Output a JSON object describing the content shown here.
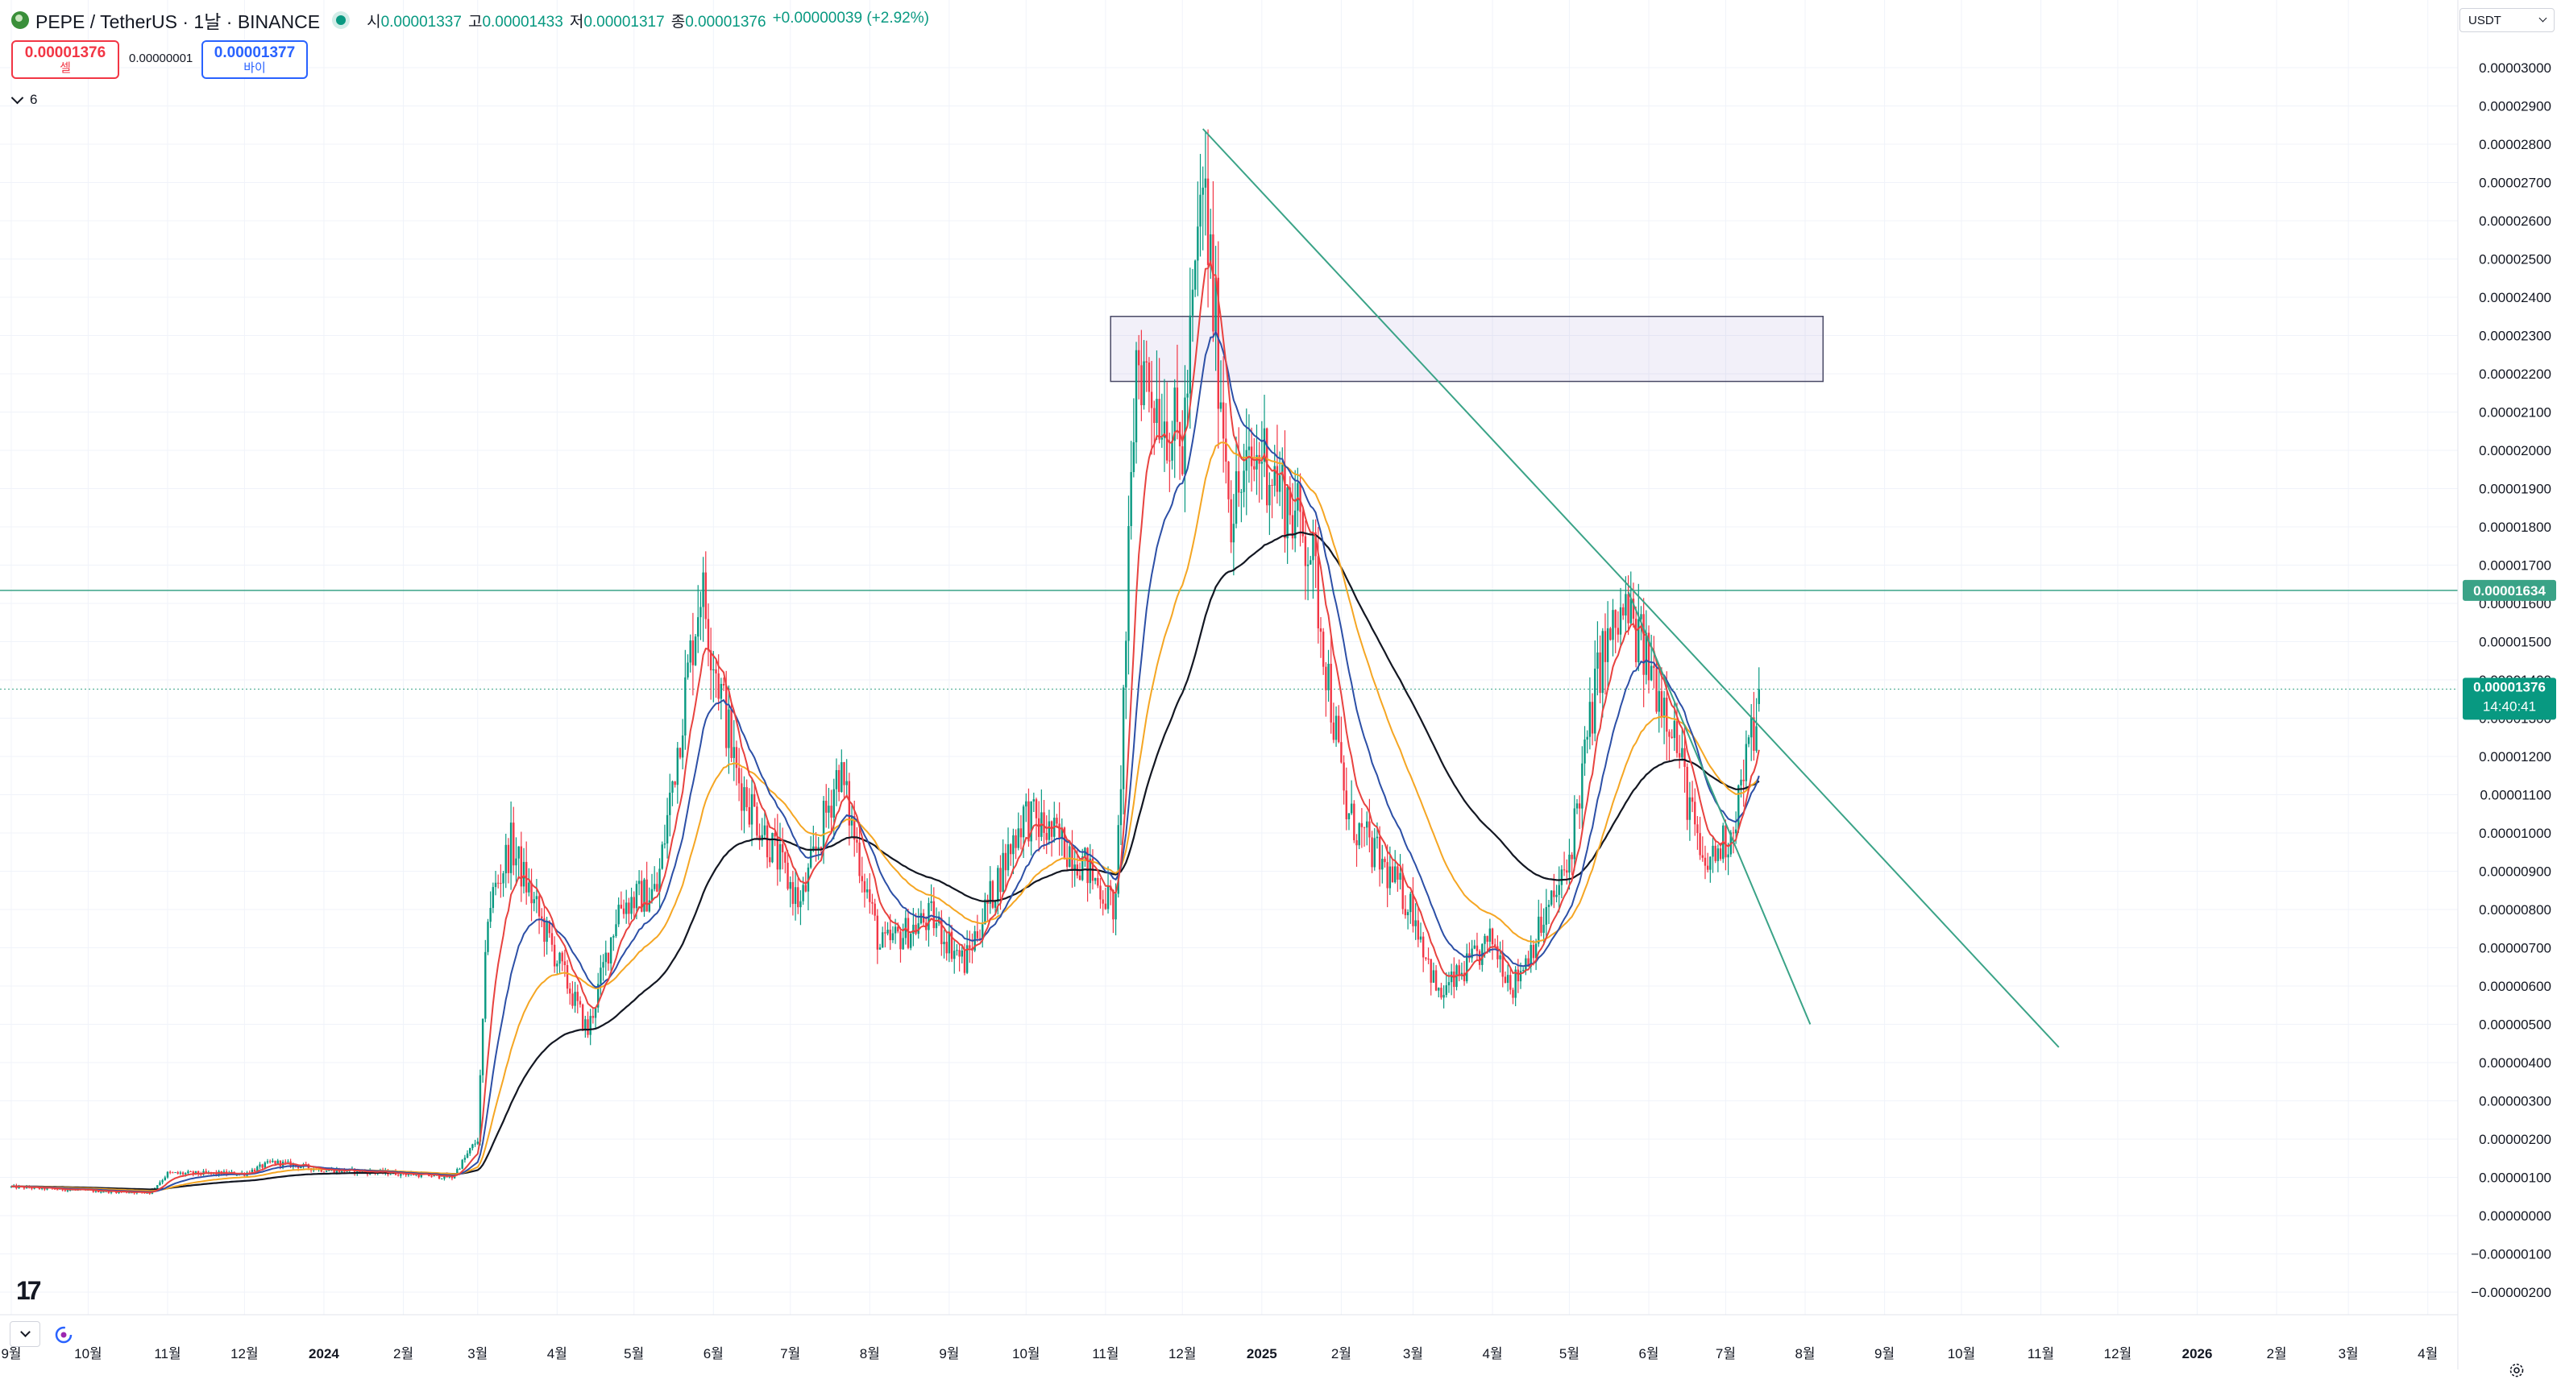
{
  "header": {
    "symbol": "PEPE / TetherUS · 1날 · BINANCE",
    "open_label": "시",
    "open": "0.00001337",
    "high_label": "고",
    "high": "0.00001433",
    "low_label": "저",
    "low": "0.00001317",
    "close_label": "종",
    "close": "0.00001376",
    "change": "+0.00000039 (+2.92%)"
  },
  "trade": {
    "sell_price": "0.00001376",
    "sell_label": "셀",
    "spread": "0.00000001",
    "buy_price": "0.00001377",
    "buy_label": "바이"
  },
  "indicators_toggle": "6",
  "currency": "USDT",
  "colors": {
    "up": "#089981",
    "down": "#f23645",
    "ma_red": "#e8423f",
    "ma_blue": "#2c4fa6",
    "ma_orange": "#f5a623",
    "ma_black": "#131722",
    "trend": "#3aa387",
    "zone": "#6b5bc2"
  },
  "price_axis": {
    "labels": [
      "0.00003000",
      "0.00002900",
      "0.00002800",
      "0.00002700",
      "0.00002600",
      "0.00002500",
      "0.00002400",
      "0.00002300",
      "0.00002200",
      "0.00002100",
      "0.00002000",
      "0.00001900",
      "0.00001800",
      "0.00001700",
      "0.00001600",
      "0.00001500",
      "0.00001400",
      "0.00001300",
      "0.00001200",
      "0.00001100",
      "0.00001000",
      "0.00000900",
      "0.00000800",
      "0.00000700",
      "0.00000600",
      "0.00000500",
      "0.00000400",
      "0.00000300",
      "0.00000200",
      "0.00000100",
      "0.00000000",
      "−0.00000100",
      "−0.00000200"
    ],
    "horizontal_line_label": "0.00001634",
    "last_price_label": "0.00001376",
    "countdown": "14:40:41"
  },
  "time_axis": {
    "labels": [
      "9월",
      "10월",
      "11월",
      "12월",
      "2024",
      "2월",
      "3월",
      "4월",
      "5월",
      "6월",
      "7월",
      "8월",
      "9월",
      "10월",
      "11월",
      "12월",
      "2025",
      "2월",
      "3월",
      "4월",
      "5월",
      "6월",
      "7월",
      "8월",
      "9월",
      "10월",
      "11월",
      "12월",
      "2026",
      "2월",
      "3월",
      "4월"
    ],
    "bold": [
      "2024",
      "2025",
      "2026"
    ]
  },
  "chart_data": {
    "type": "candlestick",
    "x_axis": "monthly ticks from 9월 2023 to 4월 2026",
    "y_unit": "USDT",
    "ylim": [
      -2e-06,
      3e-05
    ],
    "price_path": [
      [
        "2023-09-01",
        7.5e-07
      ],
      [
        "2023-10-01",
        6.5e-07
      ],
      [
        "2023-10-25",
        6e-07
      ],
      [
        "2023-11-01",
        1.1e-06
      ],
      [
        "2023-12-01",
        1.1e-06
      ],
      [
        "2023-12-12",
        1.4e-06
      ],
      [
        "2024-01-01",
        1.2e-06
      ],
      [
        "2024-02-01",
        1.1e-06
      ],
      [
        "2024-02-20",
        1e-06
      ],
      [
        "2024-03-01",
        2e-06
      ],
      [
        "2024-03-05",
        8e-06
      ],
      [
        "2024-03-14",
        9.7e-06
      ],
      [
        "2024-03-25",
        7.8e-06
      ],
      [
        "2024-04-13",
        4.8e-06
      ],
      [
        "2024-04-25",
        8.1e-06
      ],
      [
        "2024-05-10",
        8.5e-06
      ],
      [
        "2024-05-27",
        1.65e-05
      ],
      [
        "2024-06-10",
        1.15e-05
      ],
      [
        "2024-07-05",
        8.1e-06
      ],
      [
        "2024-07-20",
        1.17e-05
      ],
      [
        "2024-08-05",
        7e-06
      ],
      [
        "2024-08-25",
        7.8e-06
      ],
      [
        "2024-09-07",
        6.6e-06
      ],
      [
        "2024-09-30",
        1.05e-05
      ],
      [
        "2024-10-20",
        9.5e-06
      ],
      [
        "2024-11-05",
        8e-06
      ],
      [
        "2024-11-13",
        2.25e-05
      ],
      [
        "2024-12-01",
        2e-05
      ],
      [
        "2024-12-09",
        2.7e-05
      ],
      [
        "2024-12-20",
        1.85e-05
      ],
      [
        "2025-01-01",
        2e-05
      ],
      [
        "2025-01-20",
        1.75e-05
      ],
      [
        "2025-02-03",
        1.05e-05
      ],
      [
        "2025-03-01",
        8e-06
      ],
      [
        "2025-03-11",
        5.7e-06
      ],
      [
        "2025-04-01",
        7.2e-06
      ],
      [
        "2025-04-09",
        6e-06
      ],
      [
        "2025-04-30",
        9e-06
      ],
      [
        "2025-05-13",
        1.45e-05
      ],
      [
        "2025-05-23",
        1.58e-05
      ],
      [
        "2025-06-10",
        1.3e-05
      ],
      [
        "2025-06-22",
        9e-06
      ],
      [
        "2025-07-03",
        1e-05
      ],
      [
        "2025-07-15",
        1.37e-05
      ]
    ],
    "moving_averages": [
      {
        "color": "red",
        "period_hint": "short"
      },
      {
        "color": "blue",
        "period_hint": "medium"
      },
      {
        "color": "orange",
        "period_hint": "long"
      },
      {
        "color": "black",
        "period_hint": "longest"
      }
    ],
    "horizontal_line": 1.634e-05,
    "last_price": 1.376e-05,
    "resistance_zone": {
      "from": "2024-11-03",
      "to": "2025-08-08",
      "low": 2.18e-05,
      "high": 2.35e-05
    },
    "trendlines": [
      {
        "from": [
          "2024-12-09",
          2.84e-05
        ],
        "to": [
          "2025-11-08",
          4.4e-06
        ]
      },
      {
        "from": [
          "2025-05-24",
          1.63e-05
        ],
        "to": [
          "2025-08-03",
          5e-06
        ]
      }
    ]
  }
}
